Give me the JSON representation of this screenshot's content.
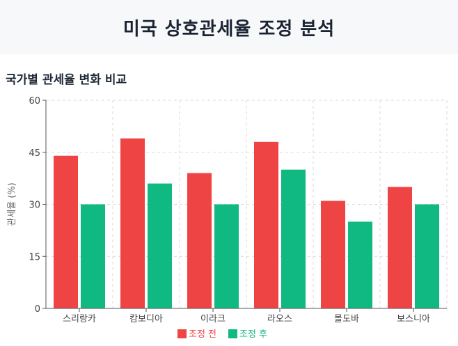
{
  "header": {
    "title": "미국 상호관세율 조정 분석"
  },
  "section": {
    "title": "국가별 관세율 변화 비교"
  },
  "colors": {
    "before": "#ef4444",
    "after": "#10b981",
    "grid": "#d9d9d9",
    "axis": "#555555"
  },
  "chart_data": {
    "type": "bar",
    "categories": [
      "스리랑카",
      "캄보디아",
      "이라크",
      "라오스",
      "몰도바",
      "보스니아"
    ],
    "series": [
      {
        "name": "조정 전",
        "values": [
          44,
          49,
          39,
          48,
          31,
          35
        ]
      },
      {
        "name": "조정 후",
        "values": [
          30,
          36,
          30,
          40,
          25,
          30
        ]
      }
    ],
    "xlabel": "",
    "ylabel": "관세율 (%)",
    "ylim": [
      0,
      60
    ],
    "yticks": [
      0,
      15,
      30,
      45,
      60
    ],
    "grid": true,
    "legend_position": "bottom-center"
  }
}
